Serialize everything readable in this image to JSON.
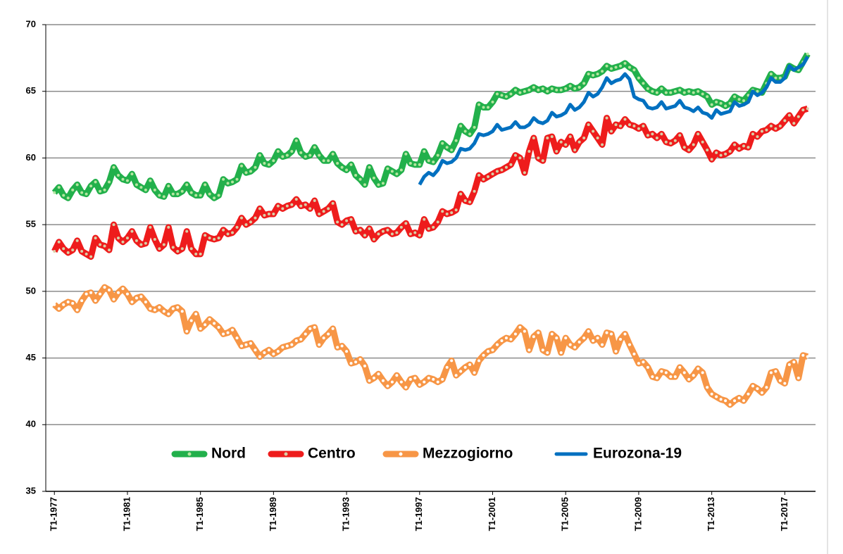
{
  "chart_data": {
    "type": "line",
    "categories": [
      "T1-1977",
      null,
      null,
      null,
      null,
      null,
      null,
      null,
      null,
      null,
      null,
      null,
      null,
      null,
      null,
      null,
      "T1-1981",
      null,
      null,
      null,
      null,
      null,
      null,
      null,
      null,
      null,
      null,
      null,
      null,
      null,
      null,
      null,
      "T1-1985",
      null,
      null,
      null,
      null,
      null,
      null,
      null,
      null,
      null,
      null,
      null,
      null,
      null,
      null,
      null,
      "T1-1989",
      null,
      null,
      null,
      null,
      null,
      null,
      null,
      null,
      null,
      null,
      null,
      null,
      null,
      null,
      null,
      "T1-1993",
      null,
      null,
      null,
      null,
      null,
      null,
      null,
      null,
      null,
      null,
      null,
      null,
      null,
      null,
      null,
      "T1-1997",
      null,
      null,
      null,
      null,
      null,
      null,
      null,
      null,
      null,
      null,
      null,
      null,
      null,
      null,
      null,
      "T1-2001",
      null,
      null,
      null,
      null,
      null,
      null,
      null,
      null,
      null,
      null,
      null,
      null,
      null,
      null,
      null,
      "T1-2005",
      null,
      null,
      null,
      null,
      null,
      null,
      null,
      null,
      null,
      null,
      null,
      null,
      null,
      null,
      null,
      "T1-2009",
      null,
      null,
      null,
      null,
      null,
      null,
      null,
      null,
      null,
      null,
      null,
      null,
      null,
      null,
      null,
      "T1-2013",
      null,
      null,
      null,
      null,
      null,
      null,
      null,
      null,
      null,
      null,
      null,
      null,
      null,
      null,
      null,
      "T1-2017",
      null,
      null,
      null,
      null,
      null
    ],
    "series": [
      {
        "name": "Nord",
        "color": "#22b04b",
        "marker_color": "#b5e6a0",
        "values": [
          57.4,
          57.8,
          57.2,
          57.0,
          57.6,
          58.0,
          57.4,
          57.3,
          57.9,
          58.2,
          57.5,
          57.6,
          58.2,
          59.3,
          58.7,
          58.4,
          58.3,
          58.8,
          58.0,
          57.8,
          57.6,
          58.3,
          57.6,
          57.2,
          57.1,
          57.9,
          57.3,
          57.3,
          57.5,
          58.0,
          57.4,
          57.2,
          57.2,
          58.0,
          57.3,
          57.0,
          57.2,
          58.4,
          58.1,
          58.2,
          58.4,
          59.4,
          58.9,
          59.0,
          59.3,
          60.2,
          59.6,
          59.5,
          59.8,
          60.5,
          60.1,
          60.2,
          60.5,
          61.3,
          60.4,
          60.1,
          60.2,
          60.8,
          60.2,
          59.8,
          59.8,
          60.3,
          59.6,
          59.3,
          59.1,
          59.5,
          58.7,
          58.4,
          58.0,
          59.3,
          58.5,
          58.0,
          58.1,
          59.2,
          59.0,
          58.8,
          59.1,
          60.3,
          59.6,
          59.5,
          59.5,
          60.5,
          59.8,
          59.7,
          60.2,
          61.1,
          60.8,
          60.6,
          61.3,
          62.4,
          62.0,
          61.8,
          62.3,
          64.0,
          63.8,
          63.8,
          64.2,
          64.8,
          64.7,
          64.6,
          64.8,
          65.1,
          64.9,
          65.0,
          65.1,
          65.3,
          65.1,
          65.2,
          65.0,
          65.2,
          65.1,
          65.1,
          65.2,
          65.4,
          65.2,
          65.3,
          65.6,
          66.3,
          66.2,
          66.3,
          66.5,
          66.9,
          66.7,
          66.8,
          66.9,
          67.1,
          66.8,
          66.6,
          66.0,
          65.6,
          65.2,
          65.0,
          64.9,
          65.2,
          64.9,
          64.9,
          65.0,
          65.1,
          64.9,
          65.0,
          64.9,
          65.0,
          64.8,
          64.6,
          64.0,
          64.2,
          64.1,
          63.9,
          64.1,
          64.6,
          64.4,
          64.3,
          64.7,
          65.1,
          65.0,
          64.9,
          65.6,
          66.3,
          66.0,
          66.0,
          66.1,
          66.9,
          66.7,
          66.6,
          67.2,
          67.8
        ]
      },
      {
        "name": "Centro",
        "color": "#ee1c1c",
        "marker_color": "#d8d0a8",
        "values": [
          53.0,
          53.7,
          53.2,
          52.9,
          53.1,
          53.8,
          53.0,
          52.8,
          52.6,
          54.0,
          53.5,
          53.4,
          53.1,
          55.0,
          54.0,
          53.7,
          54.0,
          54.5,
          53.8,
          53.5,
          53.6,
          54.8,
          53.9,
          53.2,
          53.5,
          54.8,
          53.3,
          53.0,
          53.2,
          54.5,
          53.2,
          52.8,
          52.8,
          54.2,
          54.0,
          53.9,
          54.0,
          54.6,
          54.3,
          54.4,
          54.8,
          55.5,
          55.0,
          55.2,
          55.5,
          56.2,
          55.7,
          55.8,
          55.8,
          56.4,
          56.2,
          56.4,
          56.5,
          56.9,
          56.4,
          56.5,
          56.2,
          56.8,
          55.8,
          56.0,
          56.2,
          56.6,
          55.2,
          55.0,
          55.3,
          55.4,
          54.5,
          54.6,
          54.2,
          54.7,
          53.9,
          54.3,
          54.5,
          54.6,
          54.3,
          54.4,
          54.8,
          55.1,
          54.3,
          54.4,
          54.2,
          55.4,
          54.7,
          54.8,
          55.2,
          56.0,
          55.8,
          55.9,
          56.1,
          57.3,
          56.8,
          56.7,
          57.5,
          58.7,
          58.4,
          58.6,
          58.8,
          59.0,
          59.1,
          59.3,
          59.5,
          60.2,
          60.0,
          58.9,
          60.5,
          61.5,
          60.0,
          59.8,
          61.5,
          61.6,
          60.5,
          61.2,
          61.0,
          61.6,
          60.6,
          61.2,
          61.5,
          62.5,
          62.0,
          61.5,
          61.0,
          63.0,
          62.0,
          62.5,
          62.4,
          62.9,
          62.5,
          62.4,
          62.2,
          62.4,
          61.7,
          61.8,
          61.5,
          61.8,
          61.2,
          61.1,
          61.3,
          61.7,
          60.8,
          60.6,
          61.0,
          61.8,
          61.2,
          60.6,
          59.9,
          60.4,
          60.2,
          60.3,
          60.5,
          61.0,
          60.7,
          60.9,
          60.8,
          61.8,
          61.6,
          62.0,
          62.1,
          62.4,
          62.2,
          62.4,
          62.8,
          63.2,
          62.6,
          63.1,
          63.6,
          63.7
        ]
      },
      {
        "name": "Mezzogiorno",
        "color": "#f79646",
        "marker_color": "#ffffff",
        "values": [
          49.0,
          48.7,
          49.0,
          49.2,
          49.1,
          48.6,
          49.3,
          49.8,
          49.9,
          49.3,
          49.8,
          50.3,
          50.1,
          49.4,
          49.9,
          50.2,
          49.8,
          49.2,
          49.5,
          49.6,
          49.2,
          48.7,
          48.6,
          48.8,
          48.5,
          48.3,
          48.7,
          48.8,
          48.5,
          47.0,
          47.8,
          48.3,
          47.2,
          47.5,
          47.9,
          47.6,
          47.3,
          46.8,
          46.9,
          47.1,
          46.5,
          45.9,
          46.0,
          46.1,
          45.6,
          45.1,
          45.4,
          45.6,
          45.3,
          45.5,
          45.8,
          45.9,
          46.0,
          46.3,
          46.4,
          46.8,
          47.2,
          47.3,
          46.0,
          46.5,
          46.8,
          47.2,
          45.8,
          45.9,
          45.5,
          44.6,
          44.7,
          44.9,
          44.4,
          43.3,
          43.5,
          43.8,
          43.3,
          42.9,
          43.2,
          43.7,
          43.2,
          42.8,
          43.4,
          43.5,
          43.0,
          43.2,
          43.5,
          43.4,
          43.2,
          43.4,
          44.3,
          44.8,
          43.7,
          44.0,
          44.3,
          44.5,
          43.9,
          44.8,
          45.2,
          45.5,
          45.6,
          46.0,
          46.3,
          46.5,
          46.4,
          46.8,
          47.3,
          47.0,
          45.6,
          46.6,
          46.9,
          45.6,
          45.4,
          46.8,
          46.5,
          45.4,
          46.5,
          46.0,
          45.8,
          46.2,
          46.5,
          47.0,
          46.3,
          46.5,
          46.0,
          46.9,
          46.8,
          45.5,
          46.4,
          46.8,
          46.0,
          45.3,
          44.6,
          44.7,
          44.3,
          43.6,
          43.5,
          44.0,
          43.9,
          43.6,
          43.6,
          44.3,
          43.9,
          43.4,
          43.7,
          44.2,
          43.9,
          42.8,
          42.3,
          42.1,
          41.9,
          41.8,
          41.5,
          41.8,
          42.0,
          41.8,
          42.3,
          42.9,
          42.7,
          42.4,
          42.8,
          43.9,
          44.0,
          43.3,
          43.1,
          44.5,
          44.7,
          43.5,
          45.2,
          45.1
        ]
      },
      {
        "name": "Eurozona-19",
        "color": "#0070c0",
        "values": [
          null,
          null,
          null,
          null,
          null,
          null,
          null,
          null,
          null,
          null,
          null,
          null,
          null,
          null,
          null,
          null,
          null,
          null,
          null,
          null,
          null,
          null,
          null,
          null,
          null,
          null,
          null,
          null,
          null,
          null,
          null,
          null,
          null,
          null,
          null,
          null,
          null,
          null,
          null,
          null,
          null,
          null,
          null,
          null,
          null,
          null,
          null,
          null,
          null,
          null,
          null,
          null,
          null,
          null,
          null,
          null,
          null,
          null,
          null,
          null,
          null,
          null,
          null,
          null,
          null,
          null,
          null,
          null,
          null,
          null,
          null,
          null,
          null,
          null,
          null,
          null,
          null,
          null,
          null,
          null,
          58.0,
          58.6,
          58.9,
          58.7,
          59.1,
          59.8,
          59.6,
          59.7,
          60.0,
          60.7,
          60.6,
          60.7,
          61.1,
          61.8,
          61.7,
          61.8,
          62.0,
          62.5,
          62.1,
          62.2,
          62.3,
          62.7,
          62.3,
          62.3,
          62.5,
          63.0,
          62.7,
          62.6,
          62.8,
          63.4,
          63.1,
          63.2,
          63.4,
          64.0,
          63.6,
          63.8,
          64.2,
          64.9,
          64.6,
          64.8,
          65.3,
          66.0,
          65.6,
          65.8,
          65.9,
          66.3,
          65.9,
          64.6,
          64.4,
          64.3,
          63.8,
          63.7,
          63.8,
          64.2,
          63.7,
          63.8,
          63.9,
          64.3,
          63.8,
          63.7,
          63.5,
          63.8,
          63.4,
          63.3,
          63.0,
          63.6,
          63.3,
          63.4,
          63.5,
          64.2,
          63.9,
          64.0,
          64.2,
          65.0,
          64.7,
          64.9,
          65.3,
          66.0,
          65.7,
          65.7,
          66.0,
          66.9,
          66.6,
          66.8,
          67.0,
          67.6
        ]
      }
    ],
    "ylim": [
      35,
      70
    ],
    "yticks": [
      35,
      40,
      45,
      50,
      55,
      60,
      65,
      70
    ],
    "grid": true,
    "legend": "bottom"
  }
}
